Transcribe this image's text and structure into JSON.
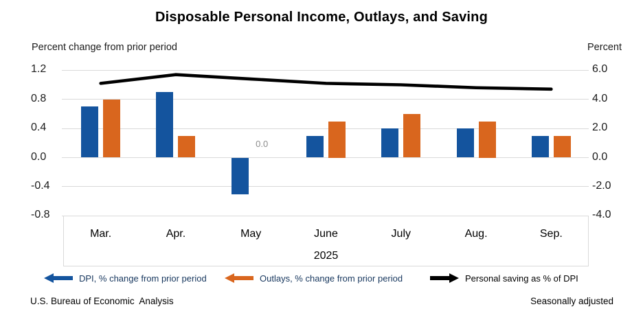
{
  "title": "Disposable Personal Income, Outlays, and Saving",
  "left_axis_title": "Percent change from prior period",
  "right_axis_title": "Percent",
  "footer": {
    "source": "U.S. Bureau of Economic  Analysis",
    "note": "Seasonally adjusted"
  },
  "colors": {
    "dpi_blue": "#14549e",
    "outlays_orange": "#d9661e",
    "saving_black": "#000000",
    "gridline": "#d9d9d9",
    "legend_text_blue": "#17375e",
    "annotation_gray": "#8c8c8c"
  },
  "legend": [
    {
      "label": "DPI, % change from prior period",
      "color": "#14549e",
      "text_color": "#17375e",
      "arrow": "left"
    },
    {
      "label": "Outlays, % change from prior period",
      "color": "#d9661e",
      "text_color": "#17375e",
      "arrow": "left"
    },
    {
      "label": "Personal saving as % of DPI",
      "color": "#000000",
      "text_color": "#000000",
      "arrow": "right"
    }
  ],
  "chart_data": {
    "type": "bar",
    "subtype": "grouped-bars-with-line",
    "categories": [
      "Mar.",
      "Apr.",
      "May",
      "June",
      "July",
      "Aug.",
      "Sep."
    ],
    "x_group_label": "2025",
    "series": [
      {
        "name": "DPI, % change from prior period",
        "type": "bar",
        "axis": "left",
        "color": "#14549e",
        "values": [
          0.7,
          0.9,
          -0.5,
          0.3,
          0.4,
          0.4,
          0.3
        ]
      },
      {
        "name": "Outlays, % change from prior period",
        "type": "bar",
        "axis": "left",
        "color": "#d9661e",
        "values": [
          0.8,
          0.3,
          0.0,
          0.5,
          0.6,
          0.5,
          0.3
        ]
      },
      {
        "name": "Personal saving as % of DPI",
        "type": "line",
        "axis": "right",
        "color": "#000000",
        "values": [
          5.1,
          5.7,
          5.4,
          5.1,
          5.0,
          4.8,
          4.7
        ]
      }
    ],
    "left_axis": {
      "label": "Percent change from prior period",
      "ticks": [
        "1.2",
        "0.8",
        "0.4",
        "0.0",
        "-0.4",
        "-0.8"
      ],
      "range": [
        -0.8,
        1.2
      ]
    },
    "right_axis": {
      "label": "Percent",
      "ticks": [
        "6.0",
        "4.0",
        "2.0",
        "0.0",
        "-2.0",
        "-4.0"
      ],
      "range": [
        -4.0,
        6.0
      ]
    },
    "annotations": [
      {
        "text": "0.0",
        "category": "May",
        "series": "Outlays, % change from prior period"
      }
    ],
    "grid": true,
    "legend_position": "bottom"
  }
}
